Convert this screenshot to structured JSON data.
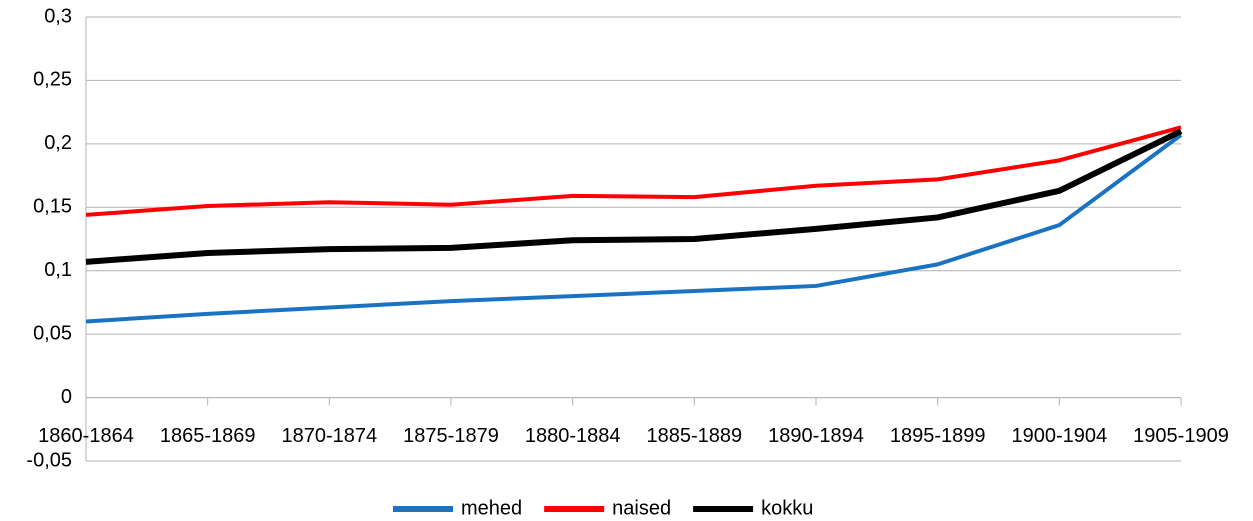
{
  "chart_data": {
    "type": "line",
    "categories": [
      "1860-1864",
      "1865-1869",
      "1870-1874",
      "1875-1879",
      "1880-1884",
      "1885-1889",
      "1890-1894",
      "1895-1899",
      "1900-1904",
      "1905-1909"
    ],
    "series": [
      {
        "name": "mehed",
        "color": "#1a73c2",
        "values": [
          0.06,
          0.066,
          0.071,
          0.076,
          0.08,
          0.084,
          0.088,
          0.105,
          0.136,
          0.207
        ]
      },
      {
        "name": "naised",
        "color": "#ff0000",
        "values": [
          0.144,
          0.151,
          0.154,
          0.152,
          0.159,
          0.158,
          0.167,
          0.172,
          0.187,
          0.213
        ]
      },
      {
        "name": "kokku",
        "color": "#000000",
        "values": [
          0.107,
          0.114,
          0.117,
          0.118,
          0.124,
          0.125,
          0.133,
          0.142,
          0.163,
          0.21
        ]
      }
    ],
    "ylim": [
      -0.05,
      0.3
    ],
    "yticks": [
      {
        "value": -0.05,
        "label": "-0,05"
      },
      0,
      {
        "value": 0.05,
        "label": "0,05"
      },
      {
        "value": 0.1,
        "label": "0,1"
      },
      {
        "value": 0.15,
        "label": "0,15"
      },
      {
        "value": 0.2,
        "label": "0,2"
      },
      {
        "value": 0.25,
        "label": "0,25"
      },
      {
        "value": 0.3,
        "label": "0,3"
      }
    ],
    "grid": true,
    "legend": "bottom"
  }
}
